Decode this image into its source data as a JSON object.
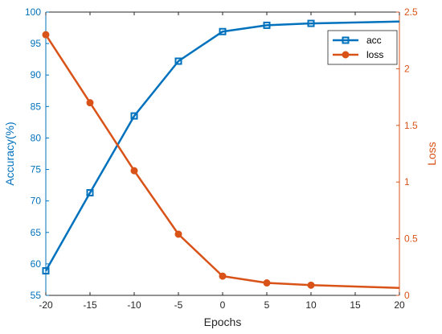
{
  "chart_data": {
    "type": "line",
    "x": [
      -20,
      -15,
      -10,
      -5,
      0,
      5,
      10,
      20
    ],
    "xlabel": "Epochs",
    "xlim": [
      -20,
      20
    ],
    "xticks": [
      "-20",
      "-15",
      "-10",
      "-5",
      "0",
      "5",
      "10",
      "15",
      "20"
    ],
    "axes": {
      "left": {
        "label": "Accuracy(%)",
        "ylim": [
          55,
          100
        ],
        "ticks": [
          "55",
          "60",
          "65",
          "70",
          "75",
          "80",
          "85",
          "90",
          "95",
          "100"
        ],
        "color": "#0072BD"
      },
      "right": {
        "label": "Loss",
        "ylim": [
          0,
          2.5
        ],
        "ticks": [
          "0",
          "0.5",
          "1",
          "1.5",
          "2",
          "2.5"
        ],
        "color": "#D95319"
      }
    },
    "series": [
      {
        "name": "acc",
        "axis": "left",
        "color": "#0072BD",
        "marker": "square",
        "values": [
          58.9,
          71.3,
          83.5,
          92.2,
          96.9,
          97.9,
          98.2,
          98.5
        ]
      },
      {
        "name": "loss",
        "axis": "right",
        "color": "#D95319",
        "marker": "circle",
        "values": [
          2.3,
          1.7,
          1.1,
          0.54,
          0.17,
          0.11,
          0.09,
          0.065
        ]
      }
    ],
    "legend": "top-right",
    "grid": false
  }
}
